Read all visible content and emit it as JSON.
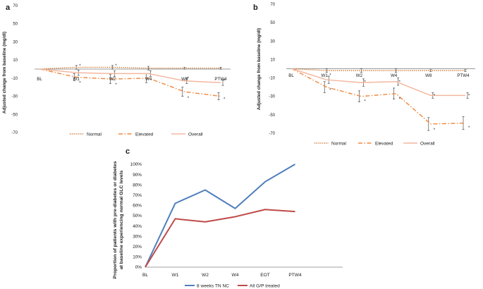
{
  "panel_labels": [
    "a",
    "b",
    "c"
  ],
  "colors": {
    "normal": "#c96a1e",
    "elevated": "#f0883e",
    "overall": "#f4b7a0",
    "zero_line": "#7a7a7a",
    "blue": "#4f7fbc",
    "red": "#bf4a48"
  },
  "chart_data": [
    {
      "id": "a",
      "type": "line",
      "ylabel": "Adjusted change from baseline (mg/dl)",
      "ylim": [
        -70,
        70
      ],
      "yticks": [
        "70",
        "50",
        "30",
        "10",
        "-10",
        "-30",
        "-50",
        "-70"
      ],
      "categories": [
        "BL",
        "W1",
        "W2",
        "W4",
        "W8",
        "PTW4"
      ],
      "series": [
        {
          "name": "Normal",
          "style": "dotted",
          "values": [
            0,
            2,
            2,
            1,
            1,
            1
          ],
          "err": [
            0,
            2,
            2,
            2,
            1,
            1
          ]
        },
        {
          "name": "Elevated",
          "style": "dashdot",
          "values": [
            0,
            -9,
            -11,
            -10,
            -25,
            -30
          ],
          "err": [
            0,
            4,
            5,
            5,
            5,
            4
          ]
        },
        {
          "name": "Overall",
          "style": "solid",
          "values": [
            0,
            -4,
            -5,
            -5,
            -13,
            -15
          ],
          "err": [
            0,
            3,
            3,
            3,
            3,
            3
          ]
        }
      ],
      "significance": [
        {
          "x": "W1",
          "y": 4,
          "label": "*"
        },
        {
          "x": "W1",
          "y": -15,
          "label": "*"
        },
        {
          "x": "W2",
          "y": 4,
          "label": "*"
        },
        {
          "x": "W2",
          "y": -17,
          "label": "*"
        },
        {
          "x": "W8",
          "y": -10,
          "label": "*"
        },
        {
          "x": "W8",
          "y": -32,
          "label": "*"
        },
        {
          "x": "PTW4",
          "y": -13,
          "label": "*"
        },
        {
          "x": "PTW4",
          "y": -33,
          "label": "*"
        }
      ]
    },
    {
      "id": "b",
      "type": "line",
      "ylabel": "Adjusted change from baseline (mg/dl)",
      "ylim": [
        -70,
        70
      ],
      "yticks": [
        "70",
        "50",
        "30",
        "10",
        "-10",
        "-30",
        "-50",
        "-70"
      ],
      "categories": [
        "BL",
        "W1",
        "W2",
        "W4",
        "W8",
        "PTW4"
      ],
      "series": [
        {
          "name": "Normal",
          "style": "dotted",
          "values": [
            0,
            -2,
            -2,
            -2,
            -2,
            -2
          ],
          "err": [
            0,
            2,
            2,
            2,
            1,
            1
          ]
        },
        {
          "name": "Elevated",
          "style": "dashdot",
          "values": [
            0,
            -20,
            -30,
            -27,
            -60,
            -59
          ],
          "err": [
            0,
            6,
            6,
            6,
            7,
            7
          ]
        },
        {
          "name": "Overall",
          "style": "solid",
          "values": [
            0,
            -12,
            -15,
            -14,
            -29,
            -29
          ],
          "err": [
            0,
            4,
            4,
            4,
            3,
            3
          ]
        }
      ],
      "significance": [
        {
          "x": "W1",
          "y": -7,
          "label": "*"
        },
        {
          "x": "W1",
          "y": -23,
          "label": "*"
        },
        {
          "x": "W2",
          "y": -14,
          "label": "*"
        },
        {
          "x": "W2",
          "y": -35,
          "label": "*"
        },
        {
          "x": "W4",
          "y": -14,
          "label": "*"
        },
        {
          "x": "W4",
          "y": -33,
          "label": "*"
        },
        {
          "x": "W8",
          "y": -29,
          "label": "*"
        },
        {
          "x": "W8",
          "y": -66,
          "label": "*"
        },
        {
          "x": "PTW4",
          "y": -29,
          "label": "*"
        },
        {
          "x": "PTW4",
          "y": -64,
          "label": "*"
        }
      ]
    },
    {
      "id": "c",
      "type": "line",
      "ylabel_lines": [
        "Proportion of patients with pre-diabetes or diabetes",
        "at baseline experiencing normal GLC levels"
      ],
      "ylim": [
        0,
        100
      ],
      "yticks": [
        "100%",
        "90%",
        "80%",
        "70%",
        "60%",
        "50%",
        "40%",
        "30%",
        "20%",
        "10%",
        "0%"
      ],
      "categories": [
        "BL",
        "W1",
        "W2",
        "W4",
        "EOT",
        "PTW4"
      ],
      "series": [
        {
          "name": "8 weeks TN NC",
          "values": [
            0,
            62,
            75,
            57,
            83,
            100
          ]
        },
        {
          "name": "All G/P treated",
          "values": [
            0,
            47,
            44,
            49,
            56,
            54
          ]
        }
      ]
    }
  ]
}
